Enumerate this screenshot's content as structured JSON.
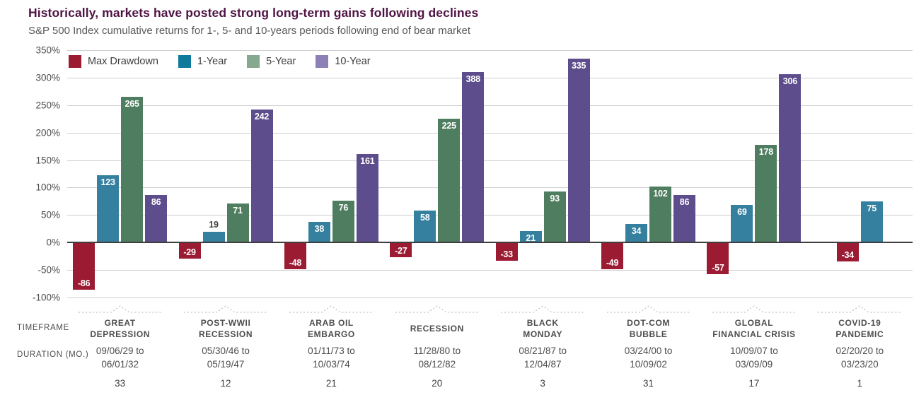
{
  "header": {
    "title": "Historically, markets have posted strong long-term gains following declines",
    "subtitle": "S&P 500 Index cumulative returns for 1-, 5- and 10-years periods following end of bear market"
  },
  "footer": {
    "timeframe_label": "TIMEFRAME",
    "duration_label": "DURATION (MO.)"
  },
  "colors": {
    "title_text": "#4f1343",
    "subtitle_text": "#58595b",
    "gridline": "#cfcfcf",
    "zero_line": "#3e3e3e",
    "label_text": "#4d4d4d"
  },
  "chart_data": {
    "type": "bar",
    "title": "Historically, markets have posted strong long-term gains following declines",
    "xlabel": "",
    "ylabel": "",
    "ylim": [
      -100,
      350
    ],
    "y_ticks": [
      350,
      300,
      250,
      200,
      150,
      100,
      50,
      0,
      -50,
      -100
    ],
    "y_tick_suffix": "%",
    "grid": true,
    "legend_position": "top-left",
    "legend": [
      {
        "label": "Max Drawdown",
        "color": "#9b1b33",
        "swatch": "#9b1b33"
      },
      {
        "label": "1-Year",
        "color": "#36809f",
        "swatch": "#0f7a9c"
      },
      {
        "label": "5-Year",
        "color": "#4f7d60",
        "swatch": "#85a88e"
      },
      {
        "label": "10-Year",
        "color": "#5d4d8c",
        "swatch": "#8c80b6"
      }
    ],
    "groups": [
      {
        "name": "GREAT DEPRESSION",
        "name_lines": [
          "GREAT",
          "DEPRESSION"
        ],
        "timeframe_lines": [
          "09/06/29 to",
          "06/01/32"
        ],
        "duration_months": "33",
        "bars": [
          {
            "series": "Max Drawdown",
            "value": -86
          },
          {
            "series": "1-Year",
            "value": 123
          },
          {
            "series": "5-Year",
            "value": 265
          },
          {
            "series": "10-Year",
            "value": 86
          }
        ]
      },
      {
        "name": "POST-WWII RECESSION",
        "name_lines": [
          "POST-WWII",
          "RECESSION"
        ],
        "timeframe_lines": [
          "05/30/46 to",
          "05/19/47"
        ],
        "duration_months": "12",
        "bars": [
          {
            "series": "Max Drawdown",
            "value": -29
          },
          {
            "series": "1-Year",
            "value": 19,
            "label_outside": true
          },
          {
            "series": "5-Year",
            "value": 71
          },
          {
            "series": "10-Year",
            "value": 242
          }
        ]
      },
      {
        "name": "ARAB OIL EMBARGO",
        "name_lines": [
          "ARAB OIL",
          "EMBARGO"
        ],
        "timeframe_lines": [
          "01/11/73 to",
          "10/03/74"
        ],
        "duration_months": "21",
        "bars": [
          {
            "series": "Max Drawdown",
            "value": -48
          },
          {
            "series": "1-Year",
            "value": 38
          },
          {
            "series": "5-Year",
            "value": 76
          },
          {
            "series": "10-Year",
            "value": 161
          }
        ]
      },
      {
        "name": "RECESSION",
        "name_lines": [
          "RECESSION"
        ],
        "timeframe_lines": [
          "11/28/80 to",
          "08/12/82"
        ],
        "duration_months": "20",
        "bars": [
          {
            "series": "Max Drawdown",
            "value": -27
          },
          {
            "series": "1-Year",
            "value": 58
          },
          {
            "series": "5-Year",
            "value": 225
          },
          {
            "series": "10-Year",
            "value": 388,
            "display_value": 310
          }
        ]
      },
      {
        "name": "BLACK MONDAY",
        "name_lines": [
          "BLACK",
          "MONDAY"
        ],
        "timeframe_lines": [
          "08/21/87 to",
          "12/04/87"
        ],
        "duration_months": "3",
        "bars": [
          {
            "series": "Max Drawdown",
            "value": -33
          },
          {
            "series": "1-Year",
            "value": 21
          },
          {
            "series": "5-Year",
            "value": 93
          },
          {
            "series": "10-Year",
            "value": 335
          }
        ]
      },
      {
        "name": "DOT-COM BUBBLE",
        "name_lines": [
          "DOT-COM",
          "BUBBLE"
        ],
        "timeframe_lines": [
          "03/24/00 to",
          "10/09/02"
        ],
        "duration_months": "31",
        "bars": [
          {
            "series": "Max Drawdown",
            "value": -49
          },
          {
            "series": "1-Year",
            "value": 34
          },
          {
            "series": "5-Year",
            "value": 102
          },
          {
            "series": "10-Year",
            "value": 86
          }
        ]
      },
      {
        "name": "GLOBAL FINANCIAL CRISIS",
        "name_lines": [
          "GLOBAL",
          "FINANCIAL CRISIS"
        ],
        "timeframe_lines": [
          "10/09/07 to",
          "03/09/09"
        ],
        "duration_months": "17",
        "bars": [
          {
            "series": "Max Drawdown",
            "value": -57
          },
          {
            "series": "1-Year",
            "value": 69
          },
          {
            "series": "5-Year",
            "value": 178
          },
          {
            "series": "10-Year",
            "value": 306
          }
        ]
      },
      {
        "name": "COVID-19 PANDEMIC",
        "name_lines": [
          "COVID-19",
          "PANDEMIC"
        ],
        "timeframe_lines": [
          "02/20/20 to",
          "03/23/20"
        ],
        "duration_months": "1",
        "bars": [
          {
            "series": "Max Drawdown",
            "value": -34
          },
          {
            "series": "1-Year",
            "value": 75
          }
        ]
      }
    ]
  }
}
